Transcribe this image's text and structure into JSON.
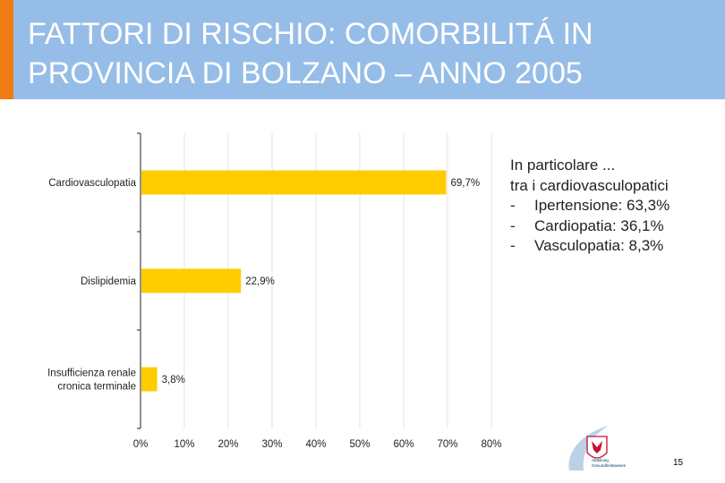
{
  "header": {
    "title_line1": "FATTORI DI RISCHIO: COMORBILITÁ IN",
    "title_line2": "PROVINCIA DI BOLZANO – ANNO 2005",
    "background_color": "#96bde7",
    "accent_color": "#f07b14"
  },
  "chart_data": {
    "type": "bar",
    "orientation": "horizontal",
    "categories": [
      [
        "Cardiovasculopatia"
      ],
      [
        "Dislipidemia"
      ],
      [
        "Insufficienza renale",
        "cronica terminale"
      ]
    ],
    "values": [
      69.7,
      22.9,
      3.8
    ],
    "data_labels": [
      "69,7%",
      "22,9%",
      "3,8%"
    ],
    "xlim": [
      0,
      80
    ],
    "x_ticks": [
      "0%",
      "10%",
      "20%",
      "30%",
      "40%",
      "50%",
      "60%",
      "70%",
      "80%"
    ],
    "grid": true,
    "bar_color": "#ffcc00"
  },
  "note": {
    "heading": "In particolare ...",
    "subheading": "tra i cardiovasculopatici",
    "items": [
      {
        "bullet": "-",
        "text": "Ipertensione: 63,3%"
      },
      {
        "bullet": "-",
        "text": "Cardiopatia: 36,1%"
      },
      {
        "bullet": "-",
        "text": "Vasculopatia: 8,3%"
      }
    ]
  },
  "logo": {
    "text_line1": "Abteilung",
    "text_line2": "Gesundheitswesen",
    "icon": "provincia-bolzano-logo-icon"
  },
  "footer": {
    "page_number": "15"
  }
}
